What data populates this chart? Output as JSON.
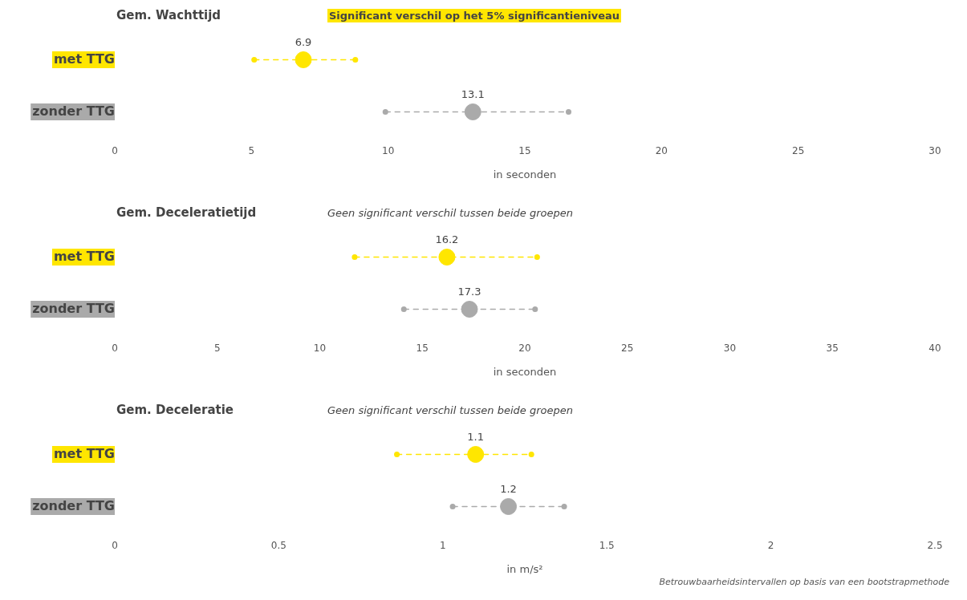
{
  "chart_data": [
    {
      "type": "scatter",
      "orientation": "horizontal",
      "title": "Gem. Wachttijd",
      "subtitle": "Significant verschil op het 5% significantieniveau",
      "xlabel": "in seconden",
      "categories": [
        "met TTG",
        "zonder TTG"
      ],
      "values": [
        6.9,
        13.1
      ],
      "errors": [
        [
          5.1,
          8.8
        ],
        [
          9.9,
          16.6
        ]
      ],
      "colors": [
        "#ffe600",
        "#aaaaaa"
      ],
      "data_labels": true,
      "xlim": [
        0,
        30
      ],
      "xticks": [
        0,
        5,
        10,
        15,
        20,
        25,
        30
      ],
      "grid": false,
      "legend": false,
      "marker": "circle",
      "line_style": "dashed"
    },
    {
      "type": "scatter",
      "orientation": "horizontal",
      "title": "Gem. Deceleratietijd",
      "subtitle": "Geen significant verschil tussen beide groepen",
      "xlabel": "in seconden",
      "categories": [
        "met TTG",
        "zonder TTG"
      ],
      "values": [
        16.2,
        17.3
      ],
      "errors": [
        [
          11.7,
          20.6
        ],
        [
          14.1,
          20.5
        ]
      ],
      "colors": [
        "#ffe600",
        "#aaaaaa"
      ],
      "data_labels": true,
      "xlim": [
        0,
        40
      ],
      "xticks": [
        0,
        5,
        10,
        15,
        20,
        25,
        30,
        35,
        40
      ],
      "grid": false,
      "legend": false,
      "marker": "circle",
      "line_style": "dashed"
    },
    {
      "type": "scatter",
      "orientation": "horizontal",
      "title": "Gem. Deceleratie",
      "subtitle": "Geen significant verschil tussen beide groepen",
      "xlabel": "in m/s²",
      "categories": [
        "met TTG",
        "zonder TTG"
      ],
      "values": [
        1.1,
        1.2
      ],
      "errors": [
        [
          0.86,
          1.27
        ],
        [
          1.03,
          1.37
        ]
      ],
      "colors": [
        "#ffe600",
        "#aaaaaa"
      ],
      "data_labels": true,
      "xlim": [
        0,
        2.5
      ],
      "xticks": [
        0,
        0.5,
        1,
        1.5,
        2,
        2.5
      ],
      "grid": false,
      "legend": false,
      "marker": "circle",
      "line_style": "dashed",
      "annotations": [
        "Betrouwbaarheidsintervallen op basis van een bootstrapmethode"
      ]
    }
  ]
}
